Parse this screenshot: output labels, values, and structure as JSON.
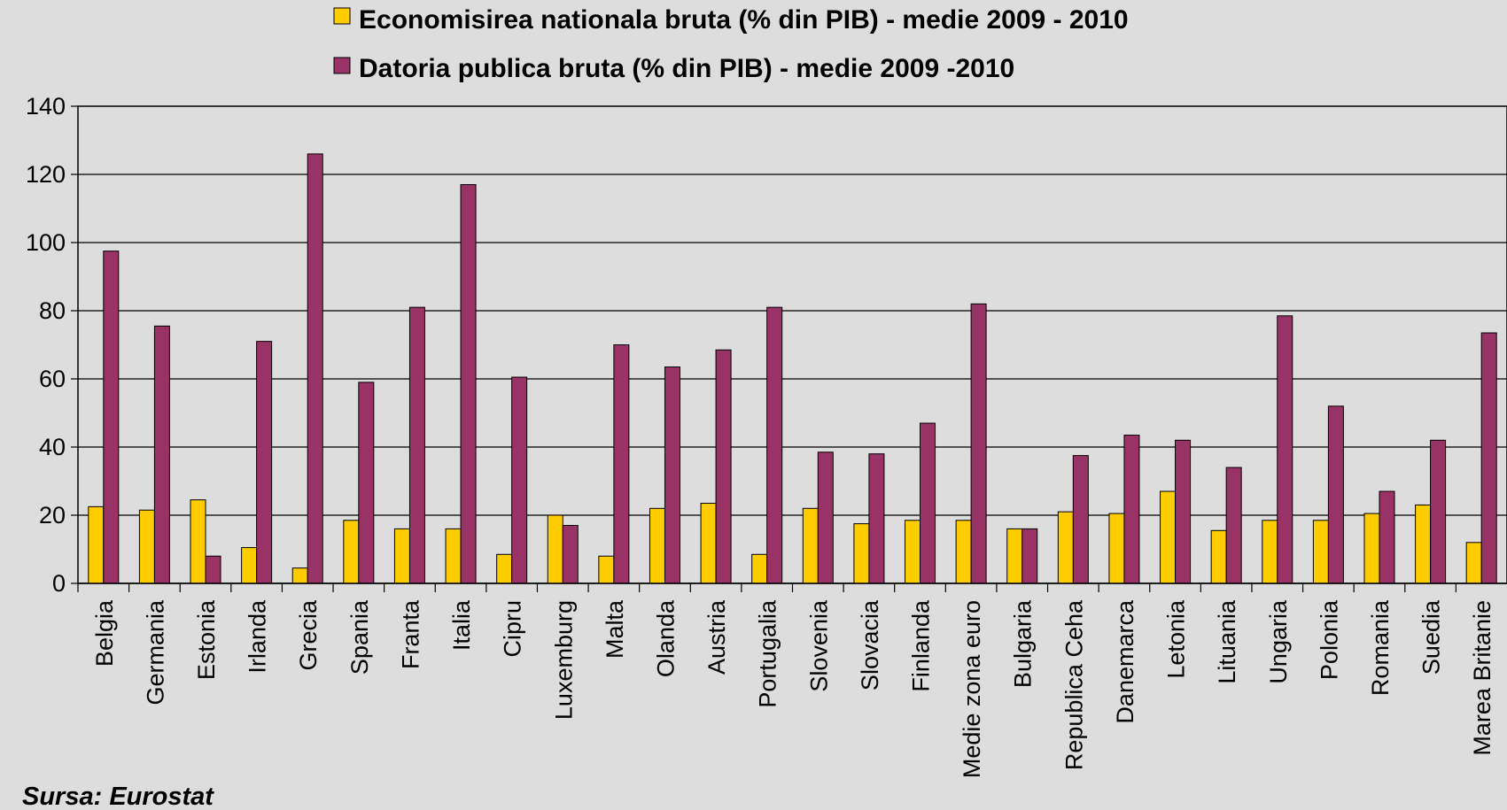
{
  "chart_data": {
    "type": "bar",
    "categories": [
      "Belgia",
      "Germania",
      "Estonia",
      "Irlanda",
      "Grecia",
      "Spania",
      "Franta",
      "Italia",
      "Cipru",
      "Luxemburg",
      "Malta",
      "Olanda",
      "Austria",
      "Portugalia",
      "Slovenia",
      "Slovacia",
      "Finlanda",
      "Medie zona euro",
      "Bulgaria",
      "Republica Ceha",
      "Danemarca",
      "Letonia",
      "Lituania",
      "Ungaria",
      "Polonia",
      "Romania",
      "Suedia",
      "Marea Britanie"
    ],
    "series": [
      {
        "name": "Economisirea nationala bruta (% din PIB) - medie 2009 - 2010",
        "color": "#ffcc00",
        "values": [
          22.5,
          21.5,
          24.5,
          10.5,
          4.5,
          18.5,
          16,
          16,
          8.5,
          20,
          8,
          22,
          23.5,
          8.5,
          22,
          17.5,
          18.5,
          18.5,
          16,
          21,
          20.5,
          27,
          15.5,
          18.5,
          18.5,
          20.5,
          23,
          12
        ]
      },
      {
        "name": "Datoria publica bruta (% din PIB) - medie 2009 -2010",
        "color": "#993366",
        "values": [
          97.5,
          75.5,
          8,
          71,
          126,
          59,
          81,
          117,
          60.5,
          17,
          70,
          63.5,
          68.5,
          81,
          38.5,
          38,
          47,
          82,
          16,
          37.5,
          43.5,
          42,
          34,
          78.5,
          52,
          27,
          42,
          73.5
        ]
      }
    ],
    "ylim": [
      0,
      140
    ],
    "yticks": [
      "0",
      "20",
      "40",
      "60",
      "80",
      "100",
      "120",
      "140"
    ],
    "grid": true,
    "legend_position": "top-center"
  },
  "source": "Sursa: Eurostat"
}
